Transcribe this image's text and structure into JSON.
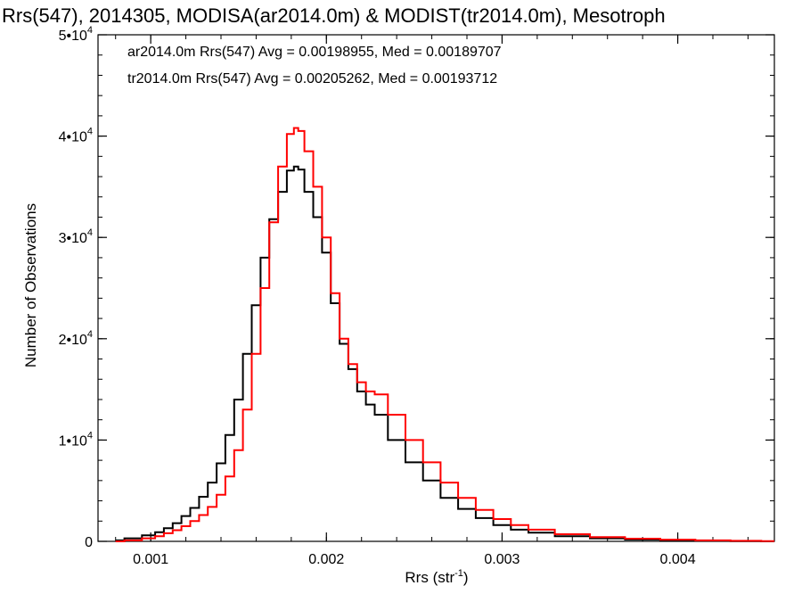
{
  "chart_data": {
    "type": "line",
    "title": "Rrs(547), 2014305, MODISA(ar2014.0m) & MODIST(tr2014.0m), Mesotroph",
    "xlabel": "Rrs (str",
    "xlabel_sup": "-1",
    "xlabel_close": ")",
    "ylabel": "Number of Observations",
    "xlim": [
      0.0007,
      0.00455
    ],
    "ylim": [
      0,
      50000
    ],
    "x_ticks": [
      {
        "value": 0.001,
        "label": "0.001"
      },
      {
        "value": 0.002,
        "label": "0.002"
      },
      {
        "value": 0.003,
        "label": "0.003"
      },
      {
        "value": 0.004,
        "label": "0.004"
      }
    ],
    "y_ticks": [
      {
        "value": 0,
        "mant": "0",
        "exp": ""
      },
      {
        "value": 10000,
        "mant": "1•10",
        "exp": "4"
      },
      {
        "value": 20000,
        "mant": "2•10",
        "exp": "4"
      },
      {
        "value": 30000,
        "mant": "3•10",
        "exp": "4"
      },
      {
        "value": 40000,
        "mant": "4•10",
        "exp": "4"
      },
      {
        "value": 50000,
        "mant": "5•10",
        "exp": "4"
      }
    ],
    "grid": false,
    "legend_position": "top-left",
    "series": [
      {
        "name": "ar2014.0m",
        "label": "ar2014.0m Rrs(547) Avg = 0.00198955, Med = 0.00189707",
        "color": "#000000",
        "x": [
          0.0008,
          0.0009,
          0.001,
          0.00105,
          0.0011,
          0.00115,
          0.0012,
          0.00125,
          0.0013,
          0.00135,
          0.0014,
          0.00145,
          0.0015,
          0.00155,
          0.0016,
          0.00165,
          0.0017,
          0.00175,
          0.0018,
          0.00183,
          0.00185,
          0.0019,
          0.00195,
          0.002,
          0.00205,
          0.0021,
          0.00215,
          0.0022,
          0.00225,
          0.0023,
          0.0024,
          0.0025,
          0.0026,
          0.0027,
          0.0028,
          0.0029,
          0.003,
          0.0031,
          0.0032,
          0.0034,
          0.0036,
          0.0038,
          0.004,
          0.0042,
          0.0044,
          0.00455
        ],
        "values": [
          100,
          300,
          600,
          900,
          1300,
          1800,
          2500,
          3300,
          4400,
          5800,
          7700,
          10500,
          14000,
          18500,
          23300,
          28000,
          31800,
          34500,
          36600,
          37000,
          36700,
          34500,
          32000,
          28500,
          23500,
          19500,
          17000,
          14800,
          13500,
          12500,
          10000,
          7800,
          6000,
          4300,
          3200,
          2300,
          1600,
          1150,
          850,
          500,
          300,
          180,
          120,
          60,
          30,
          0
        ]
      },
      {
        "name": "tr2014.0m",
        "label": "tr2014.0m Rrs(547) Avg = 0.00205262, Med = 0.00193712",
        "color": "#ff0000",
        "x": [
          0.0008,
          0.0009,
          0.001,
          0.00105,
          0.0011,
          0.00115,
          0.0012,
          0.00125,
          0.0013,
          0.00135,
          0.0014,
          0.00145,
          0.0015,
          0.00155,
          0.0016,
          0.00165,
          0.0017,
          0.00175,
          0.0018,
          0.00183,
          0.00185,
          0.0019,
          0.00195,
          0.002,
          0.00205,
          0.0021,
          0.00215,
          0.0022,
          0.00225,
          0.0023,
          0.0024,
          0.0025,
          0.0026,
          0.0027,
          0.0028,
          0.0029,
          0.003,
          0.0031,
          0.0032,
          0.0034,
          0.0036,
          0.0038,
          0.004,
          0.0042,
          0.0044,
          0.00455
        ],
        "values": [
          0,
          100,
          300,
          500,
          800,
          1100,
          1500,
          2000,
          2600,
          3400,
          4600,
          6400,
          9000,
          13000,
          18500,
          25000,
          31500,
          37000,
          40200,
          40800,
          40500,
          38500,
          35000,
          30000,
          24500,
          20000,
          17500,
          15700,
          14800,
          14500,
          12500,
          10000,
          7800,
          5800,
          4300,
          3100,
          2200,
          1600,
          1150,
          700,
          420,
          260,
          170,
          100,
          50,
          20
        ]
      }
    ]
  }
}
